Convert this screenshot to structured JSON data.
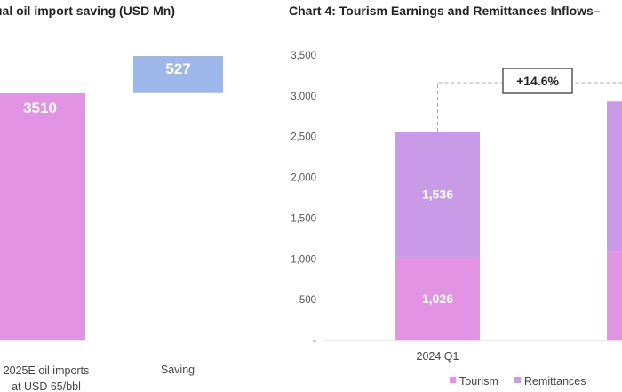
{
  "chart_data": [
    {
      "type": "bar",
      "title": "Annual oil import saving (USD Mn)",
      "title_visible": "ual oil import saving (USD Mn)",
      "categories": [
        "2025E oil imports at USD 65/bbl",
        "Saving"
      ],
      "category_lines": [
        [
          "2025E oil imports",
          "at USD 65/bbl"
        ],
        [
          "Saving"
        ]
      ],
      "values": [
        3510,
        527
      ],
      "value_labels": [
        "3510",
        "527"
      ],
      "colors": [
        "#e293e4",
        "#9db7ea"
      ]
    },
    {
      "type": "bar",
      "stacked": true,
      "title": "Chart 4: Tourism Earnings and Remittances Inflows",
      "title_visible": "Chart 4: Tourism Earnings and Remittances Inflows–",
      "categories": [
        "2024 Q1"
      ],
      "ylim": [
        0,
        3500
      ],
      "yticks": [
        "3,500",
        "3,000",
        "2,500",
        "2,000",
        "1,500",
        "1,000",
        "500",
        "-"
      ],
      "series": [
        {
          "name": "Tourism",
          "values": [
            1026
          ],
          "labels": [
            "1,026"
          ],
          "color": "#e293e4"
        },
        {
          "name": "Remittances",
          "values": [
            1536
          ],
          "labels": [
            "1,536"
          ],
          "color": "#c89ae8"
        }
      ],
      "partial_next_bar": {
        "total": 2930,
        "tourism": 1100
      },
      "annotation": "+14.6%",
      "legend": [
        "Tourism",
        "Remittances"
      ],
      "legend_position": "bottom"
    }
  ]
}
